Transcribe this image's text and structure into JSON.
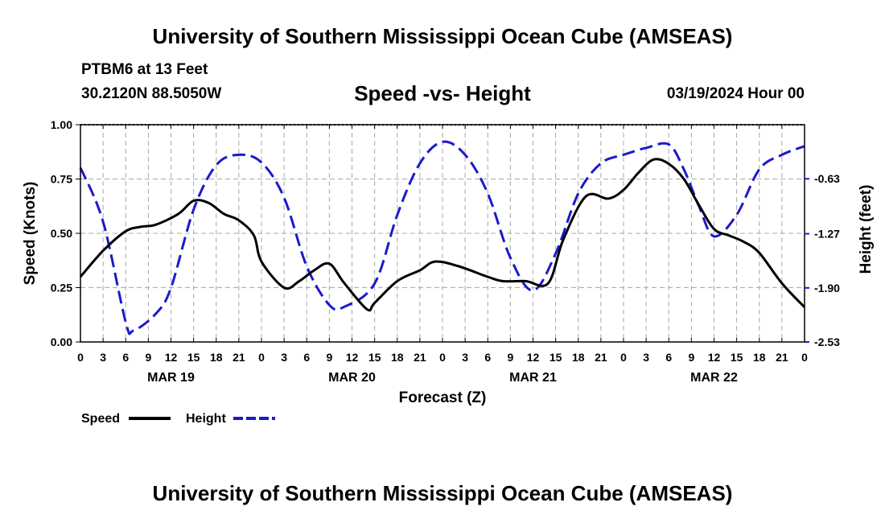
{
  "header": {
    "title": "University of Southern Mississippi Ocean Cube (AMSEAS)",
    "station": "PTBM6 at 13 Feet",
    "coords": "30.2120N  88.5050W",
    "subtitle": "Speed -vs- Height",
    "run": "03/19/2024 Hour 00"
  },
  "footer": {
    "title": "University of Southern Mississippi Ocean Cube (AMSEAS)"
  },
  "legend": {
    "speed_label": "Speed",
    "height_label": "Height"
  },
  "colors": {
    "speed": "#000000",
    "height": "#1a1acc",
    "grid": "#a8a8a8"
  },
  "chart_data": {
    "type": "line",
    "title": "Speed -vs- Height",
    "xlabel": "Forecast (Z)",
    "ylabel": "Speed (Knots)",
    "y2label": "Height (feet)",
    "xlim": [
      0,
      96
    ],
    "ylim": [
      0,
      1
    ],
    "y2lim": [
      -2.53,
      0.0
    ],
    "x_ticks": [
      0,
      3,
      6,
      9,
      12,
      15,
      18,
      21,
      24,
      27,
      30,
      33,
      36,
      39,
      42,
      45,
      48,
      51,
      54,
      57,
      60,
      63,
      66,
      69,
      72,
      75,
      78,
      81,
      84,
      87,
      90,
      93,
      96
    ],
    "x_tick_labels": [
      "0",
      "3",
      "6",
      "9",
      "12",
      "15",
      "18",
      "21",
      "0",
      "3",
      "6",
      "9",
      "12",
      "15",
      "18",
      "21",
      "0",
      "3",
      "6",
      "9",
      "12",
      "15",
      "18",
      "21",
      "0",
      "3",
      "6",
      "9",
      "12",
      "15",
      "18",
      "21",
      "0"
    ],
    "day_labels": [
      {
        "label": "MAR 19",
        "x": 12
      },
      {
        "label": "MAR 20",
        "x": 36
      },
      {
        "label": "MAR 21",
        "x": 60
      },
      {
        "label": "MAR 22",
        "x": 84
      }
    ],
    "y_ticks": [
      0.0,
      0.25,
      0.5,
      0.75,
      1.0
    ],
    "y_tick_labels": [
      "0.00",
      "0.25",
      "0.50",
      "0.75",
      "1.00"
    ],
    "y2_ticks": [
      -0.63,
      -1.27,
      -1.9,
      -2.53
    ],
    "y2_tick_labels": [
      "-0.63",
      "-1.27",
      "-1.90",
      "-2.53"
    ],
    "grid": true,
    "series": [
      {
        "name": "Speed",
        "axis": "left",
        "style": "solid",
        "x": [
          0,
          3,
          6,
          8,
          10,
          13,
          15,
          17,
          19,
          21,
          23,
          24,
          27,
          29,
          31,
          33,
          35,
          38,
          39,
          42,
          45,
          47,
          50,
          54,
          56,
          59,
          62,
          64,
          67,
          70,
          72,
          74,
          76,
          78,
          80,
          82,
          84,
          86,
          88,
          90,
          93,
          96
        ],
        "values": [
          0.3,
          0.42,
          0.51,
          0.53,
          0.54,
          0.59,
          0.65,
          0.64,
          0.59,
          0.56,
          0.49,
          0.37,
          0.25,
          0.28,
          0.33,
          0.36,
          0.27,
          0.15,
          0.18,
          0.28,
          0.33,
          0.37,
          0.35,
          0.3,
          0.28,
          0.28,
          0.27,
          0.47,
          0.67,
          0.66,
          0.7,
          0.78,
          0.84,
          0.82,
          0.75,
          0.63,
          0.52,
          0.49,
          0.46,
          0.41,
          0.27,
          0.16
        ]
      },
      {
        "name": "Height",
        "axis": "right",
        "style": "dashed",
        "x": [
          0,
          3,
          6,
          7,
          10,
          12,
          15,
          18,
          21,
          24,
          27,
          30,
          33,
          35,
          39,
          42,
          45,
          48,
          51,
          54,
          57,
          60,
          63,
          66,
          69,
          72,
          75,
          78,
          80,
          82,
          84,
          87,
          90,
          93,
          96
        ],
        "values": [
          -0.5,
          -1.13,
          -2.3,
          -2.4,
          -2.2,
          -1.9,
          -0.99,
          -0.47,
          -0.35,
          -0.44,
          -0.85,
          -1.65,
          -2.1,
          -2.12,
          -1.85,
          -1.05,
          -0.45,
          -0.2,
          -0.35,
          -0.8,
          -1.55,
          -1.93,
          -1.5,
          -0.8,
          -0.45,
          -0.35,
          -0.27,
          -0.23,
          -0.52,
          -0.95,
          -1.3,
          -1.05,
          -0.52,
          -0.35,
          -0.25
        ]
      }
    ]
  }
}
